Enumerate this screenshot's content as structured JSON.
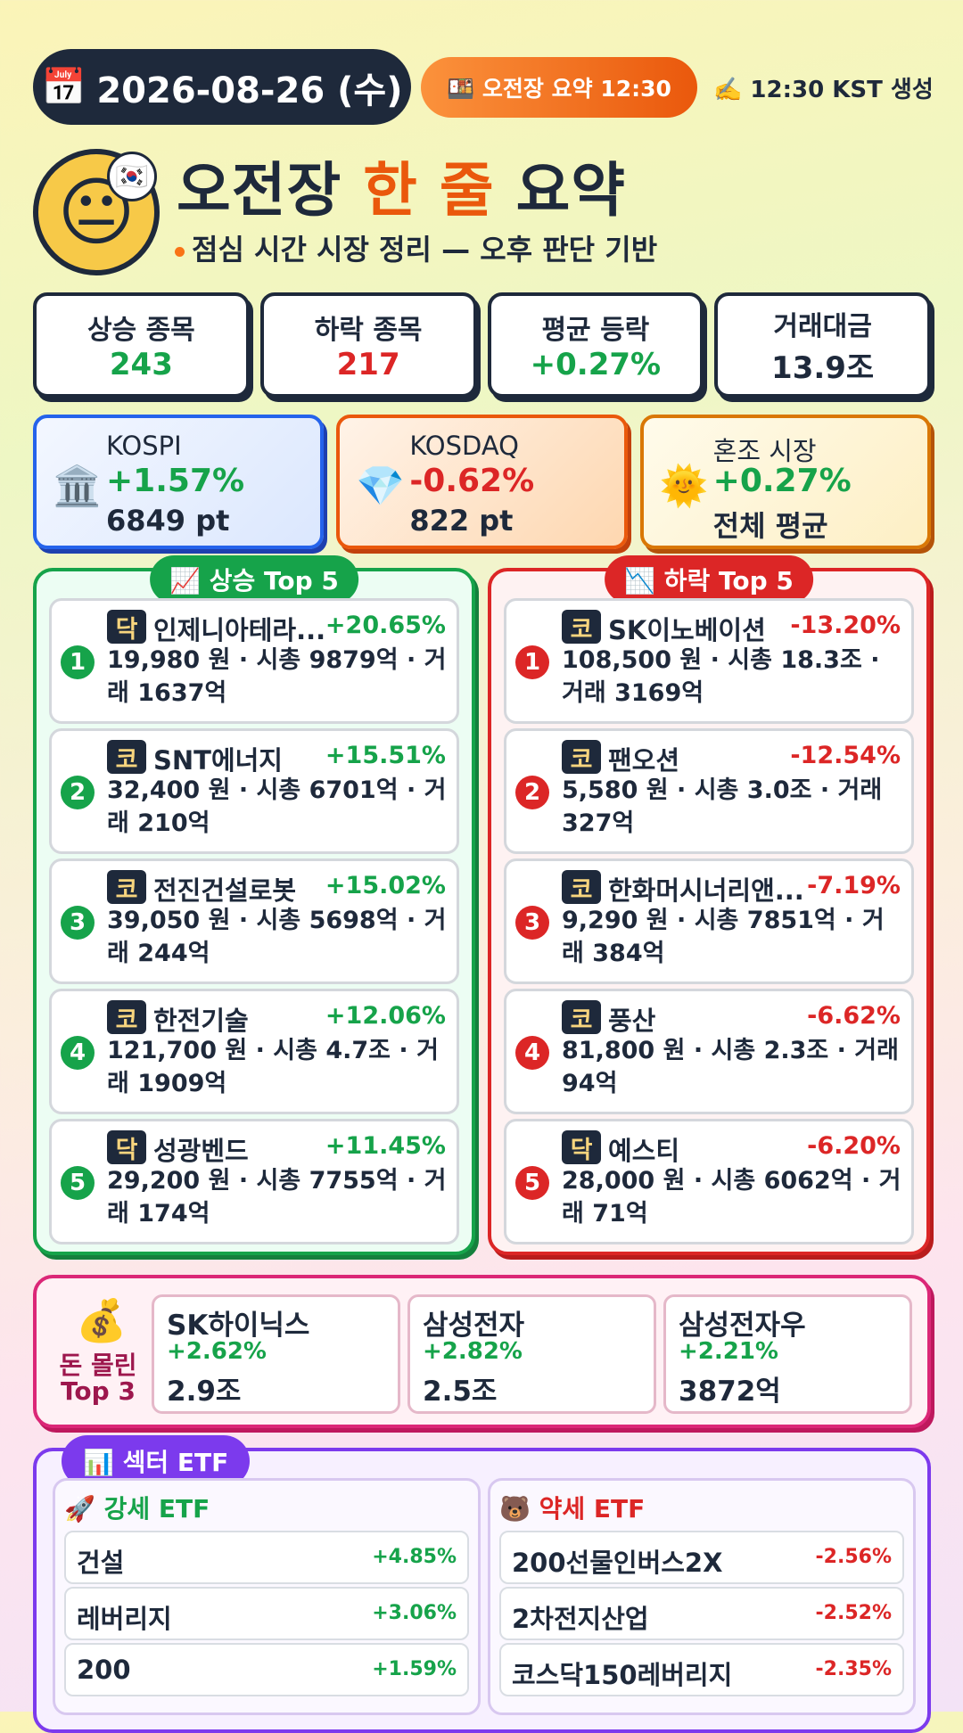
{
  "header": {
    "date_icon": "📅",
    "date": "2026-08-26 (수)",
    "session_badge": "🍱 오전장 요약 12:30",
    "generated": "✍️ 12:30 KST 생성",
    "mood_icon": "😐",
    "flag_icon": "🇰🇷",
    "title_parts": [
      "오전장",
      "한 줄",
      "요약"
    ],
    "subtitle": "점심 시간 시장 정리 — 오후 판단 기반"
  },
  "stats": [
    {
      "label": "상승 종목",
      "value": "243"
    },
    {
      "label": "하락 종목",
      "value": "217"
    },
    {
      "label": "평균 등락",
      "value": "+0.27%"
    },
    {
      "label": "거래대금",
      "value": "13.9조"
    }
  ],
  "indices": [
    {
      "icon": "🏛️",
      "name": "KOSPI",
      "change": "+1.57%",
      "level": "6849 pt"
    },
    {
      "icon": "💎",
      "name": "KOSDAQ",
      "change": "-0.62%",
      "level": "822 pt"
    },
    {
      "icon": "🌞",
      "name": "혼조 시장",
      "change": "+0.27%",
      "level": "전체 평균"
    }
  ],
  "gainers": {
    "title": "📈 상승 Top 5",
    "items": [
      {
        "rank": "1",
        "market": "닥",
        "name": "인제니아테라...",
        "change": "+20.65%",
        "detail": "19,980 원 · 시총 9879억 · 거래 1637억"
      },
      {
        "rank": "2",
        "market": "코",
        "name": "SNT에너지",
        "change": "+15.51%",
        "detail": "32,400 원 · 시총 6701억 · 거래 210억"
      },
      {
        "rank": "3",
        "market": "코",
        "name": "전진건설로봇",
        "change": "+15.02%",
        "detail": "39,050 원 · 시총 5698억 · 거래 244억"
      },
      {
        "rank": "4",
        "market": "코",
        "name": "한전기술",
        "change": "+12.06%",
        "detail": "121,700 원 · 시총 4.7조 · 거래 1909억"
      },
      {
        "rank": "5",
        "market": "닥",
        "name": "성광벤드",
        "change": "+11.45%",
        "detail": "29,200 원 · 시총 7755억 · 거래 174억"
      }
    ]
  },
  "losers": {
    "title": "📉 하락 Top 5",
    "items": [
      {
        "rank": "1",
        "market": "코",
        "name": "SK이노베이션",
        "change": "-13.20%",
        "detail": "108,500 원 · 시총 18.3조 · 거래 3169억"
      },
      {
        "rank": "2",
        "market": "코",
        "name": "팬오션",
        "change": "-12.54%",
        "detail": "5,580 원 · 시총 3.0조 · 거래 327억"
      },
      {
        "rank": "3",
        "market": "코",
        "name": "한화머시너리앤...",
        "change": "-7.19%",
        "detail": "9,290 원 · 시총 7851억 · 거래 384억"
      },
      {
        "rank": "4",
        "market": "코",
        "name": "풍산",
        "change": "-6.62%",
        "detail": "81,800 원 · 시총 2.3조 · 거래 94억"
      },
      {
        "rank": "5",
        "market": "닥",
        "name": "예스티",
        "change": "-6.20%",
        "detail": "28,000 원 · 시총 6062억 · 거래 71억"
      }
    ]
  },
  "money": {
    "icon": "💰",
    "title_lines": [
      "돈 몰린",
      "Top 3"
    ],
    "items": [
      {
        "name": "SK하이닉스",
        "change": "+2.62%",
        "amount": "2.9조"
      },
      {
        "name": "삼성전자",
        "change": "+2.82%",
        "amount": "2.5조"
      },
      {
        "name": "삼성전자우",
        "change": "+2.21%",
        "amount": "3872억"
      }
    ]
  },
  "etf": {
    "title": "📊 섹터 ETF",
    "strong": {
      "title": "🚀 강세 ETF",
      "items": [
        {
          "name": "건설",
          "change": "+4.85%"
        },
        {
          "name": "레버리지",
          "change": "+3.06%"
        },
        {
          "name": "200",
          "change": "+1.59%"
        }
      ]
    },
    "weak": {
      "title": "🐻 약세 ETF",
      "items": [
        {
          "name": "200선물인버스2X",
          "change": "-2.56%"
        },
        {
          "name": "2차전지산업",
          "change": "-2.52%"
        },
        {
          "name": "코스닥150레버리지",
          "change": "-2.35%"
        }
      ]
    }
  }
}
